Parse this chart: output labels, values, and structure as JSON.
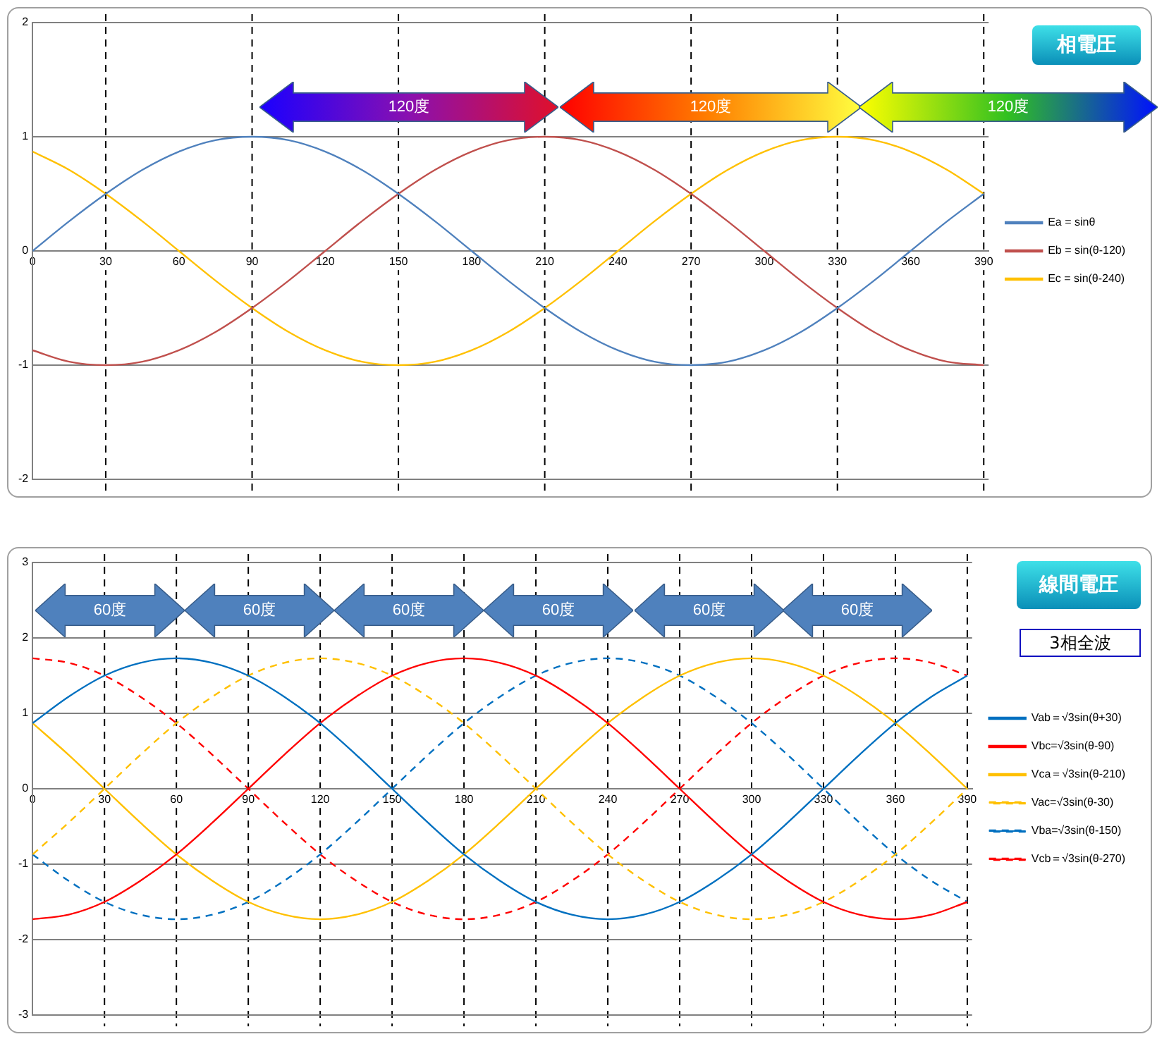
{
  "chart_data": [
    {
      "type": "line",
      "x": [
        0,
        15,
        30,
        45,
        60,
        75,
        90,
        105,
        120,
        135,
        150,
        165,
        180,
        195,
        210,
        225,
        240,
        255,
        270,
        285,
        300,
        315,
        330,
        345,
        360,
        375,
        390
      ],
      "xlim": [
        0,
        392
      ],
      "xticks": [
        0,
        30,
        60,
        90,
        120,
        150,
        180,
        210,
        240,
        270,
        300,
        330,
        360,
        390
      ],
      "ylim": [
        -2,
        2
      ],
      "yticks": [
        -2,
        -1,
        0,
        1,
        2
      ],
      "grid": "y",
      "legend": "right",
      "marker": "none",
      "series": [
        {
          "name": "Ea = sinθ",
          "color": "#4f81bd",
          "line_style": "solid",
          "values": [
            0,
            0.26,
            0.5,
            0.71,
            0.87,
            0.97,
            1,
            0.97,
            0.87,
            0.71,
            0.5,
            0.26,
            0,
            -0.26,
            -0.5,
            -0.71,
            -0.87,
            -0.97,
            -1,
            -0.97,
            -0.87,
            -0.71,
            -0.5,
            -0.26,
            0,
            0.26,
            0.5
          ]
        },
        {
          "name": "Eb = sin(θ-120)",
          "color": "#c0504d",
          "line_style": "solid",
          "values": [
            -0.87,
            -0.97,
            -1,
            -0.97,
            -0.87,
            -0.71,
            -0.5,
            -0.26,
            0,
            0.26,
            0.5,
            0.71,
            0.87,
            0.97,
            1,
            0.97,
            0.87,
            0.71,
            0.5,
            0.26,
            0,
            -0.26,
            -0.5,
            -0.71,
            -0.87,
            -0.97,
            -1
          ]
        },
        {
          "name": "Ec = sin(θ-240)",
          "color": "#ffc000",
          "line_style": "solid",
          "values": [
            0.87,
            0.71,
            0.5,
            0.26,
            0,
            -0.26,
            -0.5,
            -0.71,
            -0.87,
            -0.97,
            -1,
            -0.97,
            -0.87,
            -0.71,
            -0.5,
            -0.26,
            0,
            0.26,
            0.5,
            0.71,
            0.87,
            0.97,
            1,
            0.97,
            0.87,
            0.71,
            0.5
          ]
        }
      ],
      "ref_lines": [
        {
          "axis": "x",
          "value": 30,
          "color": "#000000",
          "line_style": "dashed"
        },
        {
          "axis": "x",
          "value": 90,
          "color": "#000000",
          "line_style": "dashed"
        },
        {
          "axis": "x",
          "value": 150,
          "color": "#000000",
          "line_style": "dashed"
        },
        {
          "axis": "x",
          "value": 210,
          "color": "#000000",
          "line_style": "dashed"
        },
        {
          "axis": "x",
          "value": 270,
          "color": "#000000",
          "line_style": "dashed"
        },
        {
          "axis": "x",
          "value": 330,
          "color": "#000000",
          "line_style": "dashed"
        },
        {
          "axis": "x",
          "value": 390,
          "color": "#000000",
          "line_style": "dashed"
        }
      ],
      "annotations": [
        "相電圧",
        "120度",
        "120度",
        "120度"
      ]
    },
    {
      "type": "line",
      "x": [
        0,
        15,
        30,
        45,
        60,
        75,
        90,
        105,
        120,
        135,
        150,
        165,
        180,
        195,
        210,
        225,
        240,
        255,
        270,
        285,
        300,
        315,
        330,
        345,
        360,
        375,
        390
      ],
      "xlim": [
        0,
        392
      ],
      "xticks": [
        0,
        30,
        60,
        90,
        120,
        150,
        180,
        210,
        240,
        270,
        300,
        330,
        360,
        390
      ],
      "ylim": [
        -3,
        3
      ],
      "yticks": [
        -3,
        -2,
        -1,
        0,
        1,
        2,
        3
      ],
      "grid": "y",
      "legend": "right",
      "marker": "none",
      "series": [
        {
          "name": "Vab＝√3sin(θ+30)",
          "color": "#0070c0",
          "line_style": "solid",
          "values": [
            0.87,
            1.22,
            1.5,
            1.67,
            1.73,
            1.67,
            1.5,
            1.22,
            0.87,
            0.45,
            0,
            -0.45,
            -0.87,
            -1.22,
            -1.5,
            -1.67,
            -1.73,
            -1.67,
            -1.5,
            -1.22,
            -0.87,
            -0.45,
            0,
            0.45,
            0.87,
            1.22,
            1.5
          ]
        },
        {
          "name": "Vbc=√3sin(θ-90)",
          "color": "#ff0000",
          "line_style": "solid",
          "values": [
            -1.73,
            -1.67,
            -1.5,
            -1.22,
            -0.87,
            -0.45,
            0,
            0.45,
            0.87,
            1.22,
            1.5,
            1.67,
            1.73,
            1.67,
            1.5,
            1.22,
            0.87,
            0.45,
            0,
            -0.45,
            -0.87,
            -1.22,
            -1.5,
            -1.67,
            -1.73,
            -1.67,
            -1.5
          ]
        },
        {
          "name": "Vca＝√3sin(θ-210)",
          "color": "#ffc000",
          "line_style": "solid",
          "values": [
            0.87,
            0.45,
            0,
            -0.45,
            -0.87,
            -1.22,
            -1.5,
            -1.67,
            -1.73,
            -1.67,
            -1.5,
            -1.22,
            -0.87,
            -0.45,
            0,
            0.45,
            0.87,
            1.22,
            1.5,
            1.67,
            1.73,
            1.67,
            1.5,
            1.22,
            0.87,
            0.45,
            0
          ]
        },
        {
          "name": "Vac=√3sin(θ-30)",
          "color": "#ffc000",
          "line_style": "dashed",
          "values": [
            -0.87,
            -0.45,
            0,
            0.45,
            0.87,
            1.22,
            1.5,
            1.67,
            1.73,
            1.67,
            1.5,
            1.22,
            0.87,
            0.45,
            0,
            -0.45,
            -0.87,
            -1.22,
            -1.5,
            -1.67,
            -1.73,
            -1.67,
            -1.5,
            -1.22,
            -0.87,
            -0.45,
            0
          ]
        },
        {
          "name": "Vba=√3sin(θ-150)",
          "color": "#0070c0",
          "line_style": "dashed",
          "values": [
            -0.87,
            -1.22,
            -1.5,
            -1.67,
            -1.73,
            -1.67,
            -1.5,
            -1.22,
            -0.87,
            -0.45,
            0,
            0.45,
            0.87,
            1.22,
            1.5,
            1.67,
            1.73,
            1.67,
            1.5,
            1.22,
            0.87,
            0.45,
            0,
            -0.45,
            -0.87,
            -1.22,
            -1.5
          ]
        },
        {
          "name": "Vcb＝√3sin(θ-270)",
          "color": "#ff0000",
          "line_style": "dashed",
          "values": [
            1.73,
            1.67,
            1.5,
            1.22,
            0.87,
            0.45,
            0,
            -0.45,
            -0.87,
            -1.22,
            -1.5,
            -1.67,
            -1.73,
            -1.67,
            -1.5,
            -1.22,
            -0.87,
            -0.45,
            0,
            0.45,
            0.87,
            1.22,
            1.5,
            1.67,
            1.73,
            1.67,
            1.5
          ]
        }
      ],
      "ref_lines": [
        {
          "axis": "x",
          "value": 30,
          "color": "#000000",
          "line_style": "dashed"
        },
        {
          "axis": "x",
          "value": 60,
          "color": "#000000",
          "line_style": "dashed"
        },
        {
          "axis": "x",
          "value": 90,
          "color": "#000000",
          "line_style": "dashed"
        },
        {
          "axis": "x",
          "value": 120,
          "color": "#000000",
          "line_style": "dashed"
        },
        {
          "axis": "x",
          "value": 150,
          "color": "#000000",
          "line_style": "dashed"
        },
        {
          "axis": "x",
          "value": 180,
          "color": "#000000",
          "line_style": "dashed"
        },
        {
          "axis": "x",
          "value": 210,
          "color": "#000000",
          "line_style": "dashed"
        },
        {
          "axis": "x",
          "value": 240,
          "color": "#000000",
          "line_style": "dashed"
        },
        {
          "axis": "x",
          "value": 270,
          "color": "#000000",
          "line_style": "dashed"
        },
        {
          "axis": "x",
          "value": 300,
          "color": "#000000",
          "line_style": "dashed"
        },
        {
          "axis": "x",
          "value": 330,
          "color": "#000000",
          "line_style": "dashed"
        },
        {
          "axis": "x",
          "value": 360,
          "color": "#000000",
          "line_style": "dashed"
        },
        {
          "axis": "x",
          "value": 390,
          "color": "#000000",
          "line_style": "dashed"
        }
      ],
      "annotations": [
        "線間電圧",
        "3相全波",
        "60度",
        "60度",
        "60度",
        "60度",
        "60度",
        "60度"
      ]
    }
  ]
}
